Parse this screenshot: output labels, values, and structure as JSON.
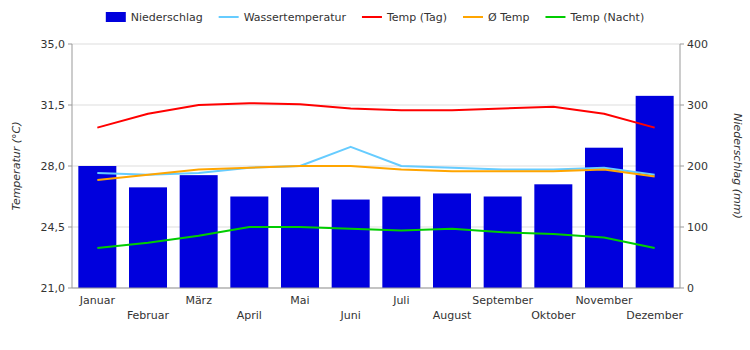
{
  "chart_data": {
    "type": "bar",
    "categories": [
      "Januar",
      "Februar",
      "März",
      "April",
      "Mai",
      "Juni",
      "Juli",
      "August",
      "September",
      "Oktober",
      "November",
      "Dezember"
    ],
    "series": [
      {
        "name": "Niederschlag",
        "type": "bar",
        "axis": "y2",
        "color": "#0000dd",
        "values": [
          200,
          165,
          185,
          150,
          165,
          145,
          150,
          155,
          150,
          170,
          230,
          315
        ]
      },
      {
        "name": "Wassertemperatur",
        "type": "line",
        "color": "#66ccff",
        "values": [
          27.6,
          27.5,
          27.6,
          27.9,
          28.0,
          29.1,
          28.0,
          27.9,
          27.8,
          27.8,
          27.9,
          27.5
        ]
      },
      {
        "name": "Temp (Tag)",
        "type": "line",
        "color": "#ff0000",
        "values": [
          30.2,
          31.0,
          31.5,
          31.6,
          31.55,
          31.3,
          31.2,
          31.2,
          31.3,
          31.4,
          31.0,
          30.2
        ]
      },
      {
        "name": "Ø Temp",
        "type": "line",
        "color": "#ffa500",
        "values": [
          27.2,
          27.5,
          27.8,
          27.9,
          28.0,
          28.0,
          27.8,
          27.7,
          27.7,
          27.7,
          27.8,
          27.4
        ]
      },
      {
        "name": "Temp (Nacht)",
        "type": "line",
        "color": "#00cc00",
        "values": [
          23.3,
          23.6,
          24.0,
          24.5,
          24.5,
          24.4,
          24.3,
          24.4,
          24.2,
          24.1,
          23.9,
          23.3
        ]
      }
    ],
    "ylim": [
      21.0,
      35.0
    ],
    "yticks": [
      {
        "value": 21.0,
        "label": "21,0"
      },
      {
        "value": 24.5,
        "label": "24,5"
      },
      {
        "value": 28.0,
        "label": "28,0"
      },
      {
        "value": 31.5,
        "label": "31,5"
      },
      {
        "value": 35.0,
        "label": "35,0"
      }
    ],
    "y2lim": [
      0,
      400
    ],
    "y2ticks": [
      0,
      100,
      200,
      300,
      400
    ],
    "y_label": "Temperatur (°C)",
    "y2_label": "Niederschlag (mm)",
    "grid": true,
    "legend": "top"
  }
}
